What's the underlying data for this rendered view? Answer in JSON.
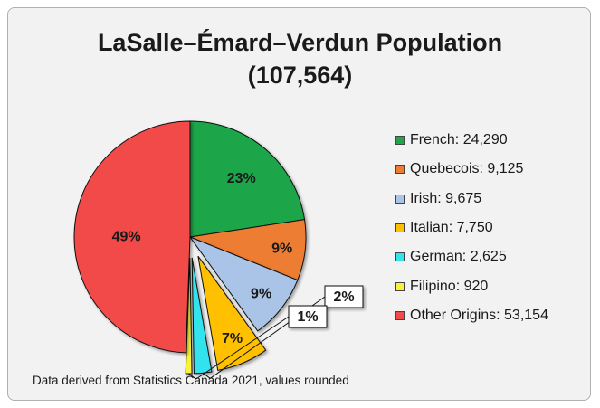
{
  "chart_data": {
    "type": "pie",
    "title": "LaSalle–Émard–Verdun Population",
    "subtitle": "(107,564)",
    "categories": [
      "French",
      "Quebecois",
      "Irish",
      "Italian",
      "German",
      "Filipino",
      "Other Origins"
    ],
    "values": [
      24290,
      9125,
      9675,
      7750,
      2625,
      920,
      53154
    ],
    "value_labels": [
      "24,290",
      "9,125",
      "9,675",
      "7,750",
      "2,625",
      "920",
      "53,154"
    ],
    "percent_labels": [
      "23%",
      "9%",
      "9%",
      "7%",
      "2%",
      "1%",
      "49%"
    ],
    "colors": [
      "#1ea64a",
      "#ed7d31",
      "#a9c4e6",
      "#ffc000",
      "#33e3ee",
      "#f7f23a",
      "#f24a4a"
    ],
    "exploded": [
      false,
      false,
      false,
      true,
      true,
      true,
      false
    ],
    "legend_position": "right",
    "note": "Data derived from Statistics Canada 2021, values rounded"
  }
}
